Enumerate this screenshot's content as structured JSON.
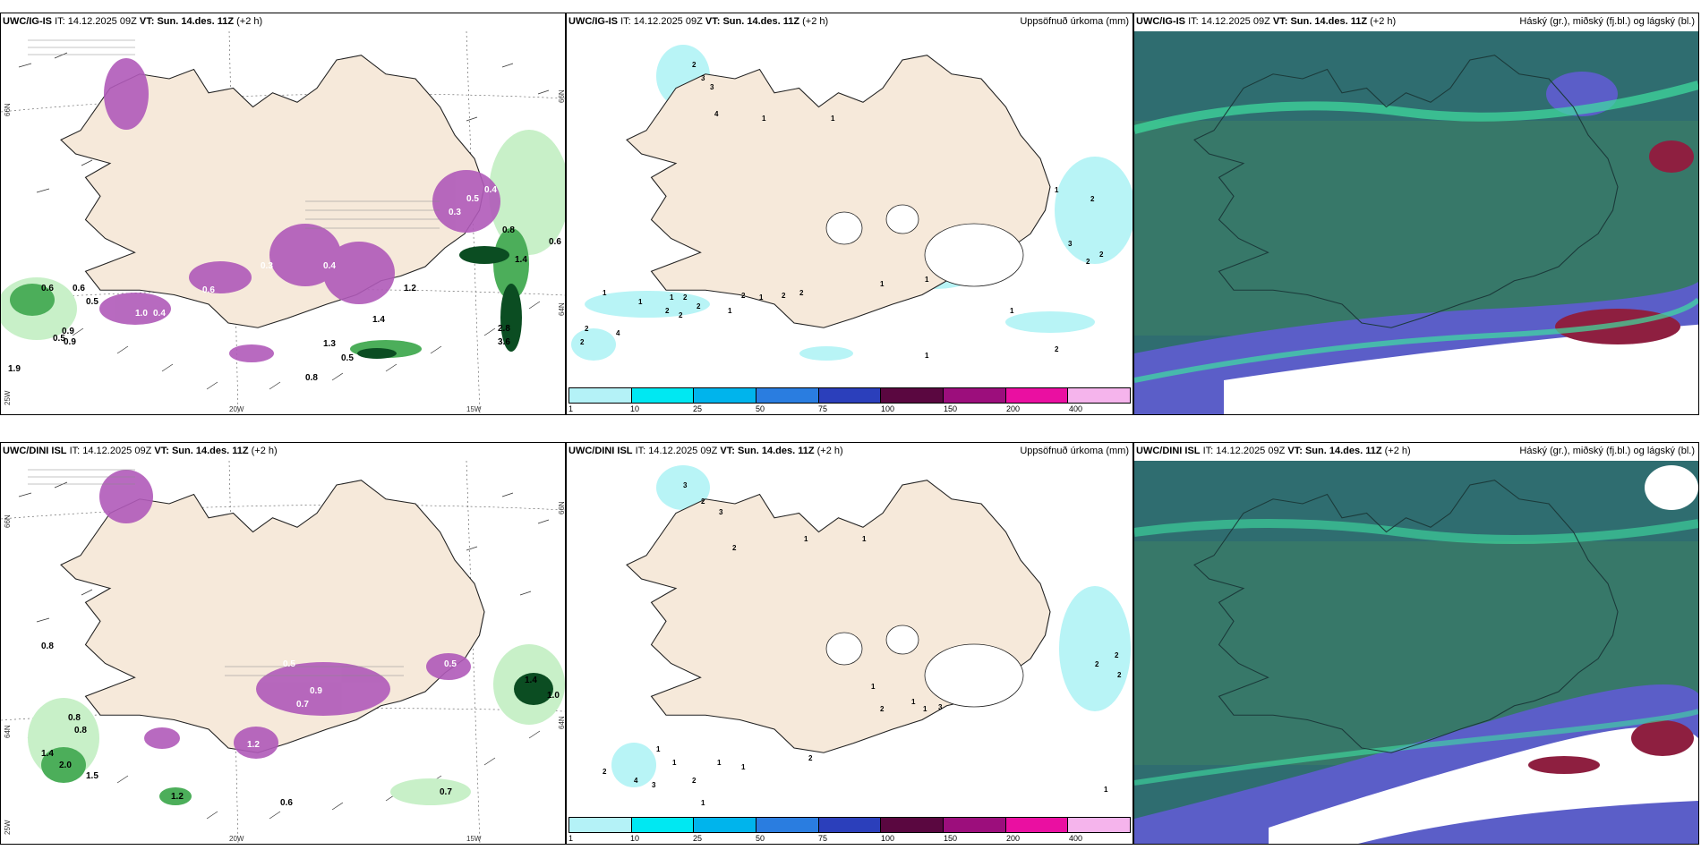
{
  "colors": {
    "land": "#f6e9da",
    "precip_light": "#c8f0c8",
    "precip_mid": "#4cae5a",
    "precip_dark": "#0b4d22",
    "snow": "#b05ab9",
    "snow_light": "#e7a8ef",
    "cloud_high": "#2f6d70",
    "cloud_mid": "#3a7a68",
    "cloud_low_blue": "#5b5ec8",
    "cloud_low_red": "#8e1f40",
    "accum_cyan": "#b8f4f6"
  },
  "rows": [
    {
      "model": "UWC/IG-IS",
      "it_label": "IT:",
      "it_value": "14.12.2025 09Z",
      "vt_label": "VT:",
      "vt_value": "Sun. 14.des. 11Z",
      "lead": "(+2 h)",
      "precip_values": [
        "0.6",
        "0.6",
        "0.5",
        "0.9",
        "0.9",
        "0.5",
        "1.9",
        "1.0",
        "0.4",
        "0.3",
        "0.6",
        "0.4",
        "0.8",
        "1.3",
        "1.4",
        "0.5",
        "2.8",
        "3.6",
        "0.6",
        "1.4",
        "1.2",
        "0.5",
        "0.3",
        "0.4",
        "0.8"
      ],
      "accum_values": [
        "2",
        "3",
        "3",
        "1",
        "1",
        "4",
        "1",
        "1",
        "1",
        "2",
        "2",
        "2",
        "2",
        "1",
        "1",
        "4",
        "2",
        "2",
        "2",
        "2",
        "2",
        "1",
        "1",
        "1",
        "2",
        "3",
        "2",
        "2",
        "1",
        "2",
        "1"
      ]
    },
    {
      "model": "UWC/DINI ISL",
      "it_label": "IT:",
      "it_value": "14.12.2025 09Z",
      "vt_label": "VT:",
      "vt_value": "Sun. 14.des. 11Z",
      "lead": "(+2 h)",
      "precip_values": [
        "0.8",
        "0.8",
        "0.8",
        "1.4",
        "2.0",
        "1.5",
        "1.2",
        "0.6",
        "0.7",
        "1.4",
        "1.0",
        "0.5",
        "0.9",
        "0.7",
        "0.5",
        "1.2"
      ],
      "accum_values": [
        "3",
        "2",
        "3",
        "2",
        "2",
        "1",
        "1",
        "1",
        "1",
        "2",
        "1",
        "1",
        "1",
        "4",
        "3",
        "1",
        "1",
        "2",
        "2",
        "1",
        "3",
        "2",
        "2",
        "2",
        "1"
      ]
    }
  ],
  "accum_title": "Uppsöfnuð úrkoma (mm)",
  "cloud_title": "Háský (gr.), miðský (fj.bl.) og lágský (bl.)",
  "coords": {
    "lat66": "66N",
    "lat64": "64N",
    "lon20": "20W",
    "lon15": "15W",
    "lon25": "25W"
  },
  "legend": {
    "colors": [
      "#b4f2f7",
      "#00e8f2",
      "#00b4ec",
      "#2a7de0",
      "#2b3fbb",
      "#5a0740",
      "#9c0e7c",
      "#ea0fa1",
      "#f5b4ec"
    ],
    "ticks": [
      "1",
      "10",
      "25",
      "50",
      "75",
      "100",
      "150",
      "200",
      "400"
    ]
  }
}
